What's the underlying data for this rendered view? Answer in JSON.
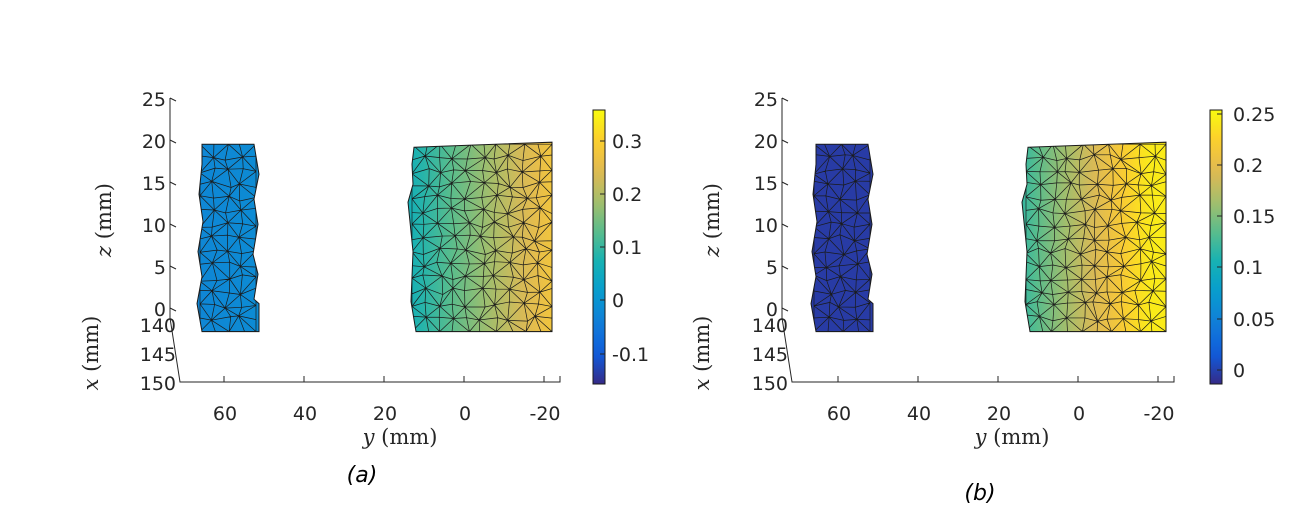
{
  "chart_data": [
    {
      "type": "heatmap",
      "panel_label": "(a)",
      "xlabel_var": "y",
      "xlabel_unit": "(mm)",
      "ylabel_var": "z",
      "ylabel_unit": "(mm)",
      "depth_label_var": "x",
      "depth_label_unit": "(mm)",
      "y_ticks": [
        "60",
        "40",
        "20",
        "0",
        "-20"
      ],
      "z_ticks": [
        "25",
        "20",
        "15",
        "10",
        "5",
        "0"
      ],
      "x_ticks": [
        "140",
        "145",
        "150"
      ],
      "y_range": [
        72,
        -24
      ],
      "z_range": [
        0,
        25
      ],
      "colorbar_ticks": [
        "0.3",
        "0.2",
        "0.1",
        "0",
        "-0.1"
      ],
      "colorbar_range": [
        -0.16,
        0.35
      ],
      "colormap": "parula",
      "regions": [
        {
          "name": "left part",
          "y_range": [
            66,
            52
          ],
          "z_range": [
            -2,
            19.5
          ],
          "values": {
            "left": -0.03,
            "right": -0.02
          }
        },
        {
          "name": "right part",
          "y_range": [
            13,
            -22
          ],
          "z_range": [
            -2,
            19.5
          ],
          "values": {
            "left": 0.06,
            "right": 0.27
          }
        }
      ]
    },
    {
      "type": "heatmap",
      "panel_label": "(b)",
      "xlabel_var": "y",
      "xlabel_unit": "(mm)",
      "ylabel_var": "z",
      "ylabel_unit": "(mm)",
      "depth_label_var": "x",
      "depth_label_unit": "(mm)",
      "y_ticks": [
        "60",
        "40",
        "20",
        "0",
        "-20"
      ],
      "z_ticks": [
        "25",
        "20",
        "15",
        "10",
        "5",
        "0"
      ],
      "x_ticks": [
        "140",
        "145",
        "150"
      ],
      "y_range": [
        72,
        -24
      ],
      "z_range": [
        0,
        25
      ],
      "colorbar_ticks": [
        "0.25",
        "0.2",
        "0.15",
        "0.1",
        "0.05",
        "0"
      ],
      "colorbar_range": [
        -0.01,
        0.25
      ],
      "colormap": "parula",
      "regions": [
        {
          "name": "left part",
          "y_range": [
            66,
            52
          ],
          "z_range": [
            -2,
            19.5
          ],
          "values": {
            "left": 0.0,
            "right": 0.0
          }
        },
        {
          "name": "right part",
          "y_range": [
            13,
            -22
          ],
          "z_range": [
            -2,
            19.5
          ],
          "values": {
            "left": 0.12,
            "right": 0.24
          }
        }
      ]
    }
  ]
}
